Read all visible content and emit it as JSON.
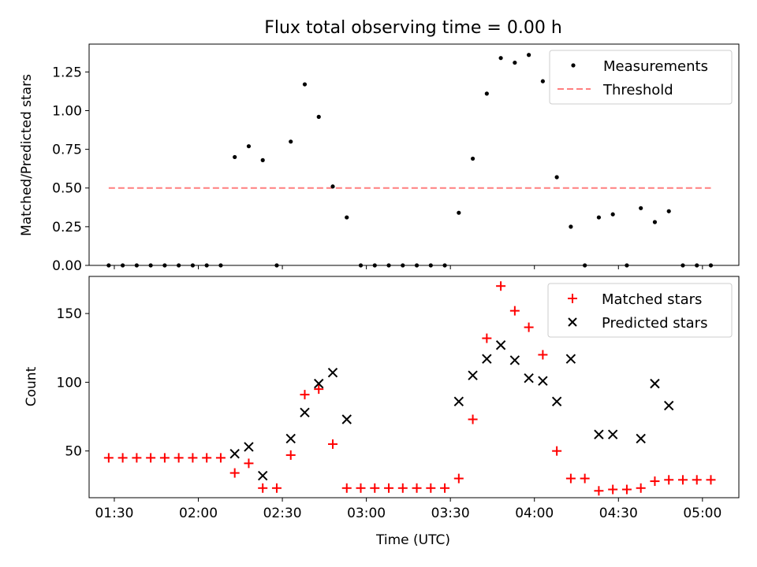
{
  "chart_data": [
    {
      "type": "scatter",
      "title": "Flux total observing time = 0.00 h",
      "ylabel": "Matched/Predicted stars",
      "ylim": [
        0,
        1.43
      ],
      "yticks": [
        "0.00",
        "0.25",
        "0.50",
        "0.75",
        "1.00",
        "1.25"
      ],
      "legend": "top-right",
      "series": [
        {
          "name": "Measurements",
          "color": "#000000",
          "marker": "dot",
          "points": [
            [
              "01:28",
              0.0
            ],
            [
              "01:33",
              0.0
            ],
            [
              "01:38",
              0.0
            ],
            [
              "01:43",
              0.0
            ],
            [
              "01:48",
              0.0
            ],
            [
              "01:53",
              0.0
            ],
            [
              "01:58",
              0.0
            ],
            [
              "02:03",
              0.0
            ],
            [
              "02:08",
              0.0
            ],
            [
              "02:13",
              0.7
            ],
            [
              "02:18",
              0.77
            ],
            [
              "02:23",
              0.68
            ],
            [
              "02:28",
              0.0
            ],
            [
              "02:33",
              0.8
            ],
            [
              "02:38",
              1.17
            ],
            [
              "02:43",
              0.96
            ],
            [
              "02:48",
              0.51
            ],
            [
              "02:53",
              0.31
            ],
            [
              "02:58",
              0.0
            ],
            [
              "03:03",
              0.0
            ],
            [
              "03:08",
              0.0
            ],
            [
              "03:13",
              0.0
            ],
            [
              "03:18",
              0.0
            ],
            [
              "03:23",
              0.0
            ],
            [
              "03:28",
              0.0
            ],
            [
              "03:33",
              0.34
            ],
            [
              "03:38",
              0.69
            ],
            [
              "03:43",
              1.11
            ],
            [
              "03:48",
              1.34
            ],
            [
              "03:53",
              1.31
            ],
            [
              "03:58",
              1.36
            ],
            [
              "04:03",
              1.19
            ],
            [
              "04:08",
              0.57
            ],
            [
              "04:13",
              0.25
            ],
            [
              "04:18",
              0.0
            ],
            [
              "04:23",
              0.31
            ],
            [
              "04:28",
              0.33
            ],
            [
              "04:33",
              0.0
            ],
            [
              "04:38",
              0.37
            ],
            [
              "04:43",
              0.28
            ],
            [
              "04:48",
              0.35
            ],
            [
              "04:53",
              0.0
            ],
            [
              "04:58",
              0.0
            ],
            [
              "05:03",
              0.0
            ]
          ]
        },
        {
          "name": "Threshold",
          "color": "#ff7f7f",
          "style": "dashed",
          "x": [
            "01:28",
            "05:03"
          ],
          "values": [
            0.5,
            0.5
          ]
        }
      ]
    },
    {
      "type": "scatter",
      "ylabel": "Count",
      "xlabel": "Time (UTC)",
      "ylim": [
        16,
        177
      ],
      "yticks": [
        "50",
        "100",
        "150"
      ],
      "xlim": [
        "01:21",
        "05:13"
      ],
      "xticks": [
        "01:30",
        "02:00",
        "02:30",
        "03:00",
        "03:30",
        "04:00",
        "04:30",
        "05:00"
      ],
      "legend": "top-right",
      "series": [
        {
          "name": "Matched stars",
          "color": "#ff0000",
          "marker": "plus",
          "points": [
            [
              "01:28",
              45
            ],
            [
              "01:33",
              45
            ],
            [
              "01:38",
              45
            ],
            [
              "01:43",
              45
            ],
            [
              "01:48",
              45
            ],
            [
              "01:53",
              45
            ],
            [
              "01:58",
              45
            ],
            [
              "02:03",
              45
            ],
            [
              "02:08",
              45
            ],
            [
              "02:13",
              34
            ],
            [
              "02:18",
              41
            ],
            [
              "02:23",
              23
            ],
            [
              "02:28",
              23
            ],
            [
              "02:33",
              47
            ],
            [
              "02:38",
              91
            ],
            [
              "02:43",
              95
            ],
            [
              "02:48",
              55
            ],
            [
              "02:53",
              23
            ],
            [
              "02:58",
              23
            ],
            [
              "03:03",
              23
            ],
            [
              "03:08",
              23
            ],
            [
              "03:13",
              23
            ],
            [
              "03:18",
              23
            ],
            [
              "03:23",
              23
            ],
            [
              "03:28",
              23
            ],
            [
              "03:33",
              30
            ],
            [
              "03:38",
              73
            ],
            [
              "03:43",
              132
            ],
            [
              "03:48",
              170
            ],
            [
              "03:53",
              152
            ],
            [
              "03:58",
              140
            ],
            [
              "04:03",
              120
            ],
            [
              "04:08",
              50
            ],
            [
              "04:13",
              30
            ],
            [
              "04:18",
              30
            ],
            [
              "04:23",
              21
            ],
            [
              "04:28",
              22
            ],
            [
              "04:33",
              22
            ],
            [
              "04:38",
              23
            ],
            [
              "04:43",
              28
            ],
            [
              "04:48",
              29
            ],
            [
              "04:53",
              29
            ],
            [
              "04:58",
              29
            ],
            [
              "05:03",
              29
            ]
          ]
        },
        {
          "name": "Predicted stars",
          "color": "#000000",
          "marker": "x",
          "points": [
            [
              "02:13",
              48
            ],
            [
              "02:18",
              53
            ],
            [
              "02:23",
              32
            ],
            [
              "02:33",
              59
            ],
            [
              "02:38",
              78
            ],
            [
              "02:43",
              99
            ],
            [
              "02:48",
              107
            ],
            [
              "02:53",
              73
            ],
            [
              "03:33",
              86
            ],
            [
              "03:38",
              105
            ],
            [
              "03:43",
              117
            ],
            [
              "03:48",
              127
            ],
            [
              "03:53",
              116
            ],
            [
              "03:58",
              103
            ],
            [
              "04:03",
              101
            ],
            [
              "04:08",
              86
            ],
            [
              "04:13",
              117
            ],
            [
              "04:23",
              62
            ],
            [
              "04:28",
              62
            ],
            [
              "04:38",
              59
            ],
            [
              "04:43",
              99
            ],
            [
              "04:48",
              83
            ]
          ]
        }
      ]
    }
  ]
}
